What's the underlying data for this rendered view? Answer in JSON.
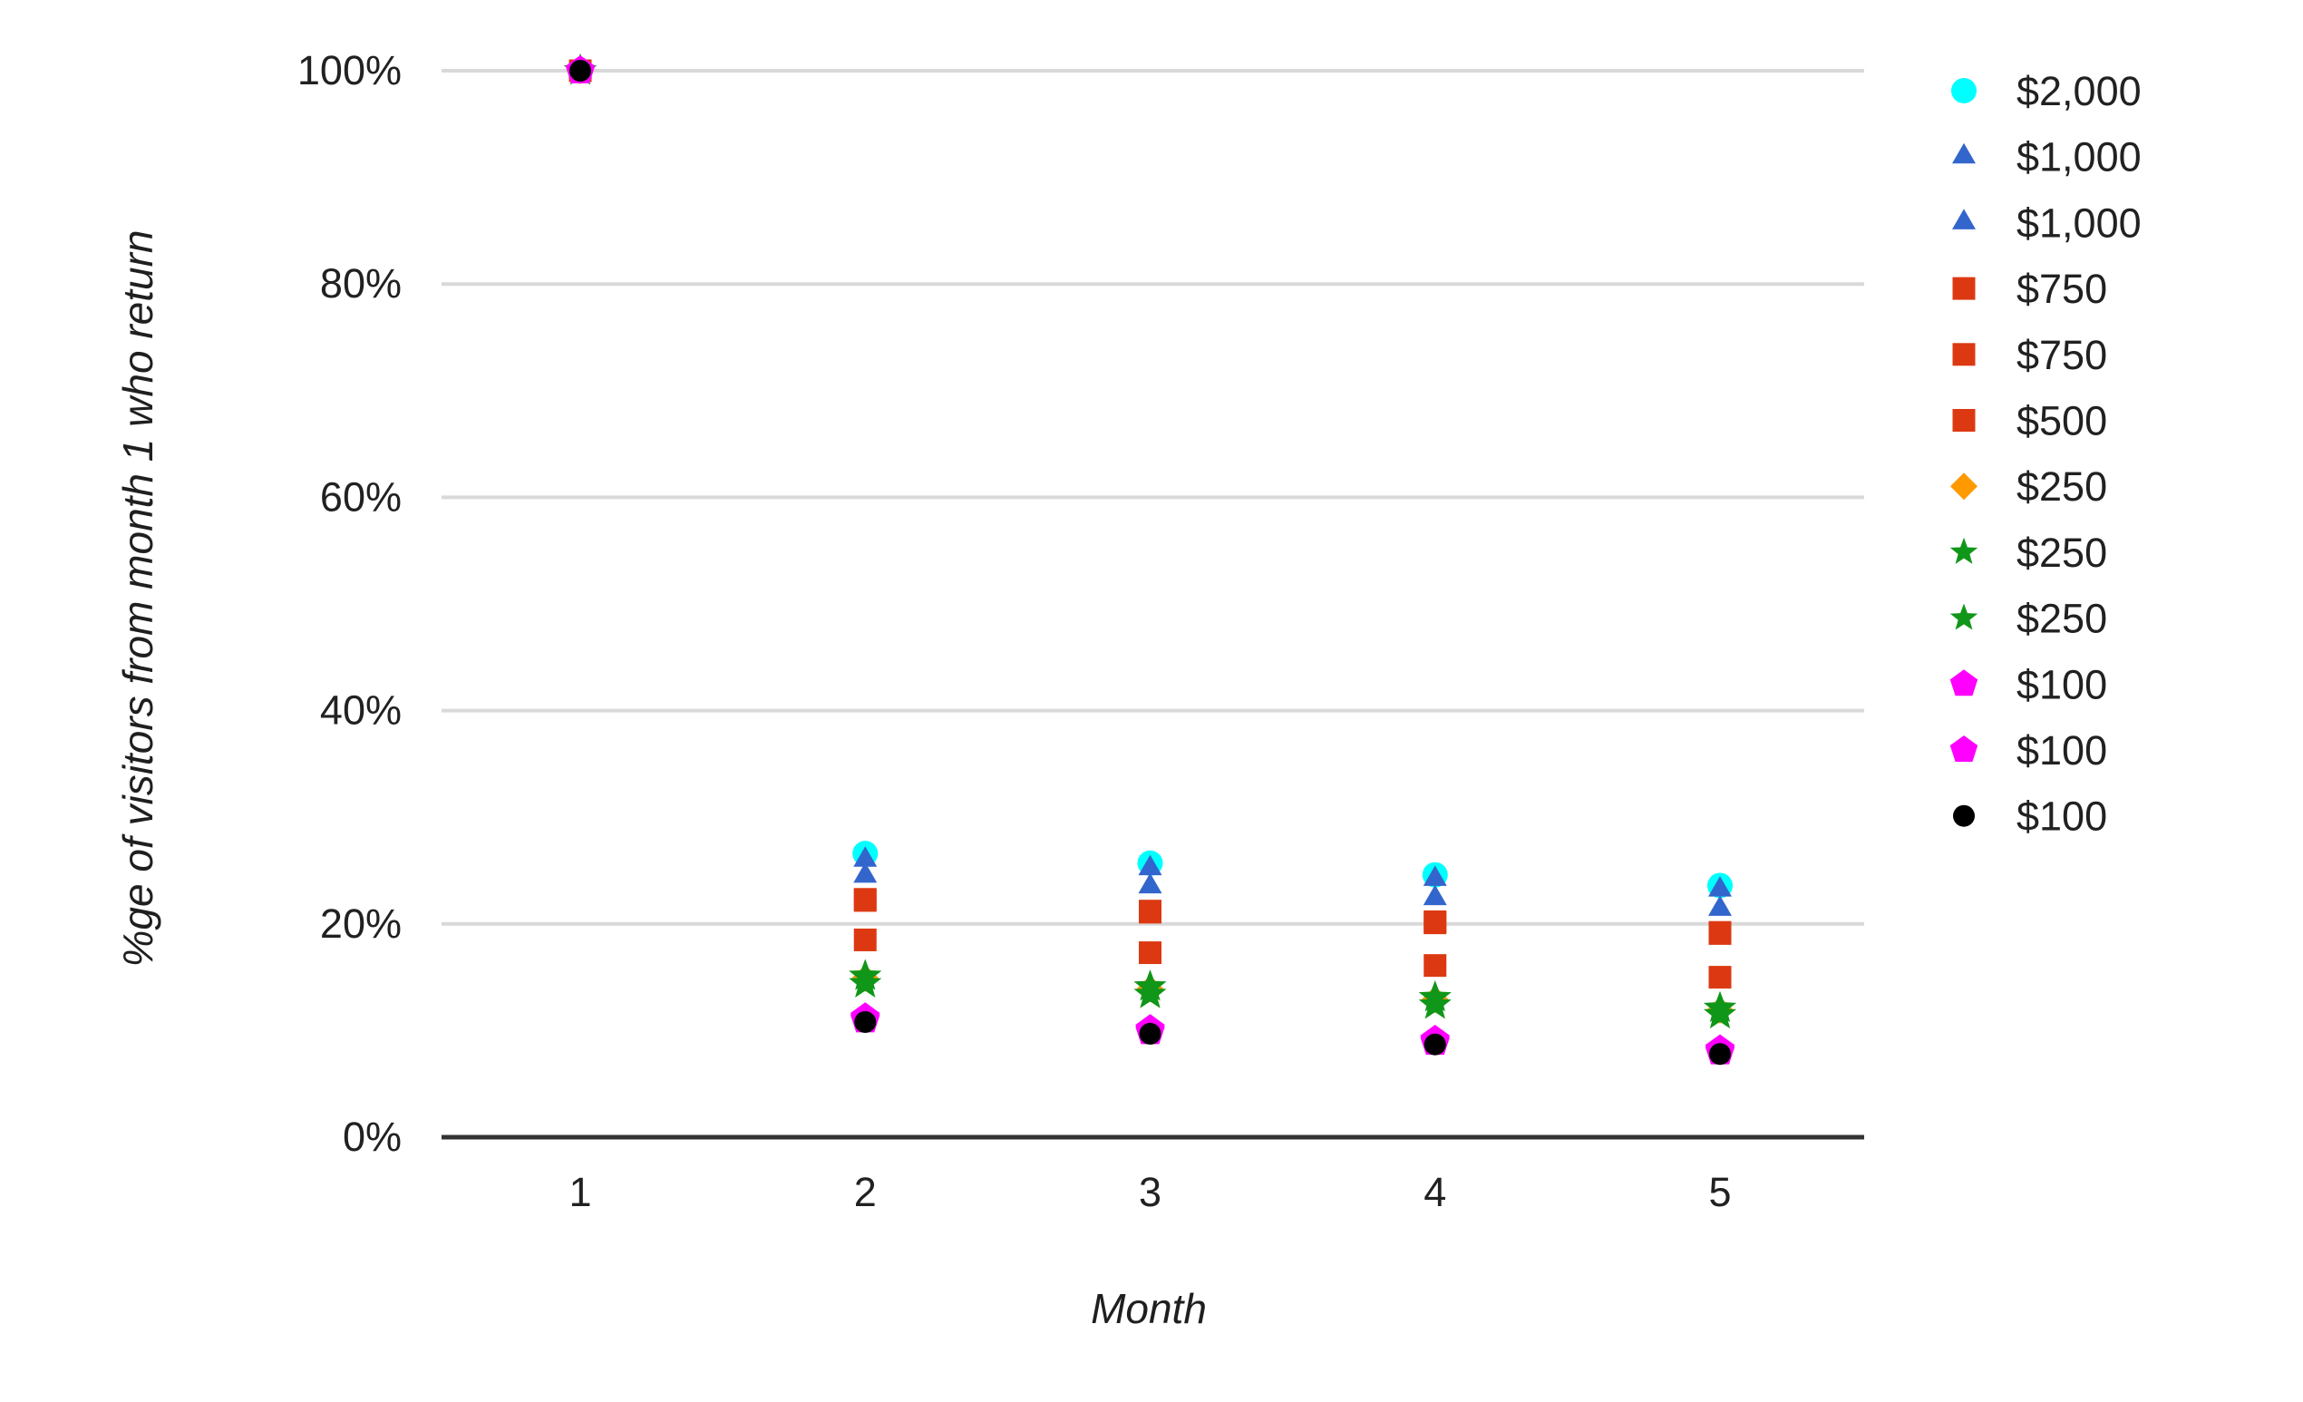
{
  "chart_data": {
    "type": "scatter",
    "title": "",
    "xlabel": "Month",
    "ylabel": "%ge of visitors from month 1 who return",
    "x": [
      1,
      2,
      3,
      4,
      5
    ],
    "x_tick_labels": [
      "1",
      "2",
      "3",
      "4",
      "5"
    ],
    "y_tick_labels": [
      "0%",
      "20%",
      "40%",
      "60%",
      "80%",
      "100%"
    ],
    "ylim": [
      0,
      100
    ],
    "grid": true,
    "legend_position": "right",
    "series": [
      {
        "name": "$2,000",
        "marker": "circle",
        "color": "#00ffff",
        "size": 14,
        "values": [
          100,
          26.6,
          25.7,
          24.6,
          23.6
        ]
      },
      {
        "name": "$1,000",
        "marker": "triangle",
        "color": "#3366cc",
        "size": 15,
        "values": [
          100,
          26.0,
          25.2,
          24.2,
          23.2
        ]
      },
      {
        "name": "$1,000",
        "marker": "triangle",
        "color": "#3366cc",
        "size": 15,
        "values": [
          100,
          24.5,
          23.5,
          22.4,
          21.4
        ]
      },
      {
        "name": "$750",
        "marker": "square",
        "color": "#dc3912",
        "size": 12.5,
        "values": [
          100,
          22.3,
          21.2,
          20.2,
          19.2
        ]
      },
      {
        "name": "$750",
        "marker": "square",
        "color": "#dc3912",
        "size": 12.5,
        "values": [
          100,
          22.2,
          21.1,
          20.1,
          19.1
        ]
      },
      {
        "name": "$500",
        "marker": "square",
        "color": "#dc3912",
        "size": 12.5,
        "values": [
          100,
          18.5,
          17.3,
          16.1,
          15.0
        ]
      },
      {
        "name": "$250",
        "marker": "diamond",
        "color": "#ff9900",
        "size": 15,
        "values": [
          100,
          14.9,
          13.9,
          12.9,
          11.9
        ]
      },
      {
        "name": "$250",
        "marker": "star",
        "color": "#109618",
        "size": 19,
        "values": [
          100,
          15.1,
          14.1,
          13.1,
          12.1
        ]
      },
      {
        "name": "$250",
        "marker": "star",
        "color": "#109618",
        "size": 19,
        "values": [
          100,
          14.4,
          13.4,
          12.4,
          11.5
        ]
      },
      {
        "name": "$100",
        "marker": "pentagon",
        "color": "#ff00ff",
        "size": 17,
        "values": [
          100,
          11.2,
          10.1,
          9.1,
          8.2
        ]
      },
      {
        "name": "$100",
        "marker": "pentagon",
        "color": "#ff00ff",
        "size": 17,
        "values": [
          100,
          11.0,
          9.9,
          8.9,
          8.0
        ]
      },
      {
        "name": "$100",
        "marker": "circle",
        "color": "#000000",
        "size": 12,
        "values": [
          100,
          10.8,
          9.7,
          8.7,
          7.8
        ]
      }
    ]
  },
  "colors": {
    "background": "#ffffff",
    "grid": "#d9d9d9",
    "axis": "#333333",
    "text": "#212121"
  }
}
